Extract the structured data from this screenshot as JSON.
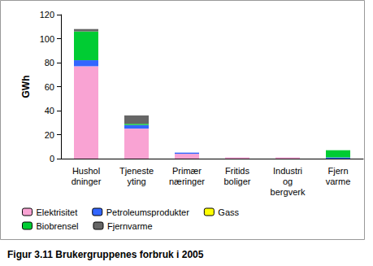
{
  "chart_data": {
    "type": "bar",
    "title": "Figur 3.11 Brukergruppenes forbruk i 2005",
    "y_label": "GWh",
    "categories": [
      "Hushol\ndninger",
      "Tjeneste\nyting",
      "Primær\nnæringer",
      "Fritids\nboliger",
      "Industri\nog\nbergverk",
      "Fjern\nvarme"
    ],
    "series": [
      {
        "name": "Elektrisitet",
        "color": "#f9a3d3",
        "values": [
          77,
          25,
          4,
          1,
          1,
          0
        ]
      },
      {
        "name": "Petroleumsprodukter",
        "color": "#3366ff",
        "values": [
          5,
          3,
          1,
          0,
          0,
          1
        ]
      },
      {
        "name": "Gass",
        "color": "#ffff00",
        "values": [
          0,
          0,
          0,
          0,
          0,
          0
        ]
      },
      {
        "name": "Biobrensel",
        "color": "#00cc33",
        "values": [
          24,
          1,
          0,
          0,
          0,
          6
        ]
      },
      {
        "name": "Fjernvarme",
        "color": "#666666",
        "values": [
          2,
          7,
          0,
          0,
          0,
          0
        ]
      }
    ],
    "ylim": [
      0,
      120
    ],
    "yticks": [
      0,
      20,
      40,
      60,
      80,
      100,
      120
    ],
    "stacked": true,
    "grid": false,
    "legend": "bottom"
  }
}
